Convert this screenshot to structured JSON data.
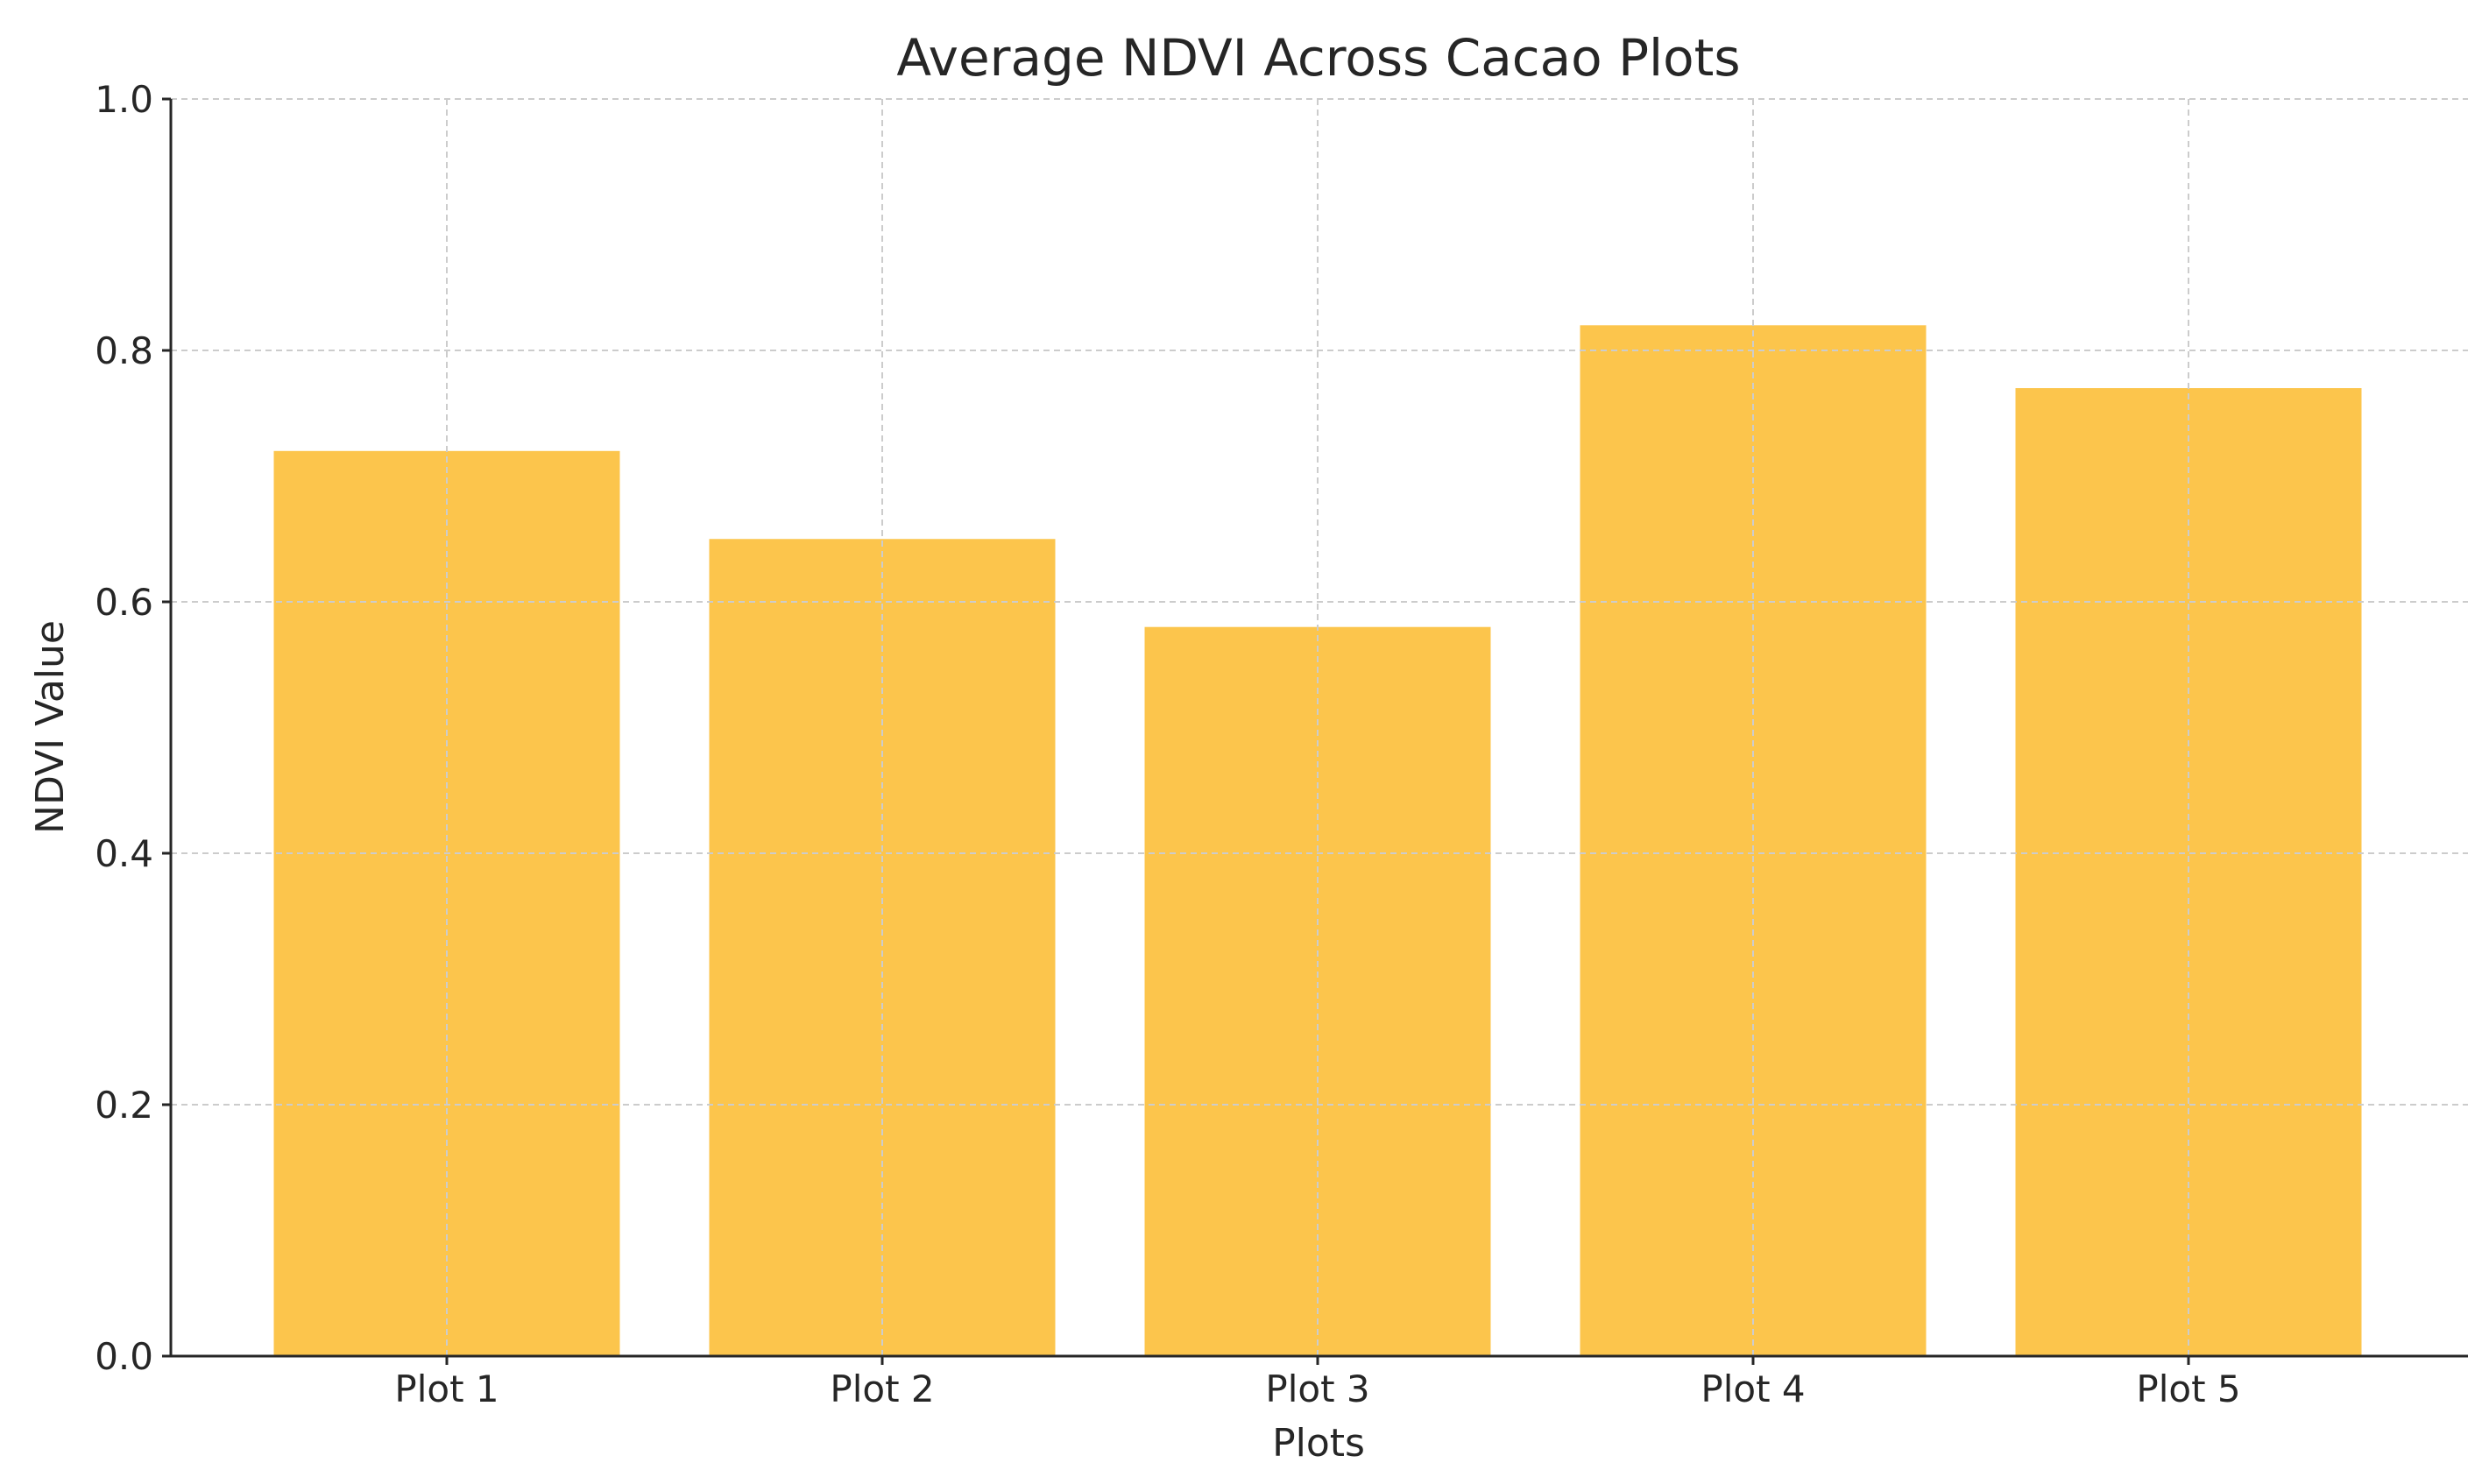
{
  "chart_data": {
    "type": "bar",
    "title": "Average NDVI Across Cacao Plots",
    "xlabel": "Plots",
    "ylabel": "NDVI Value",
    "categories": [
      "Plot 1",
      "Plot 2",
      "Plot 3",
      "Plot 4",
      "Plot 5"
    ],
    "values": [
      0.72,
      0.65,
      0.58,
      0.82,
      0.77
    ],
    "ylim": [
      0,
      1.0
    ],
    "yticks": [
      "0.0",
      "0.2",
      "0.4",
      "0.6",
      "0.8",
      "1.0"
    ],
    "grid": true,
    "bar_color": "#FCC54C"
  }
}
